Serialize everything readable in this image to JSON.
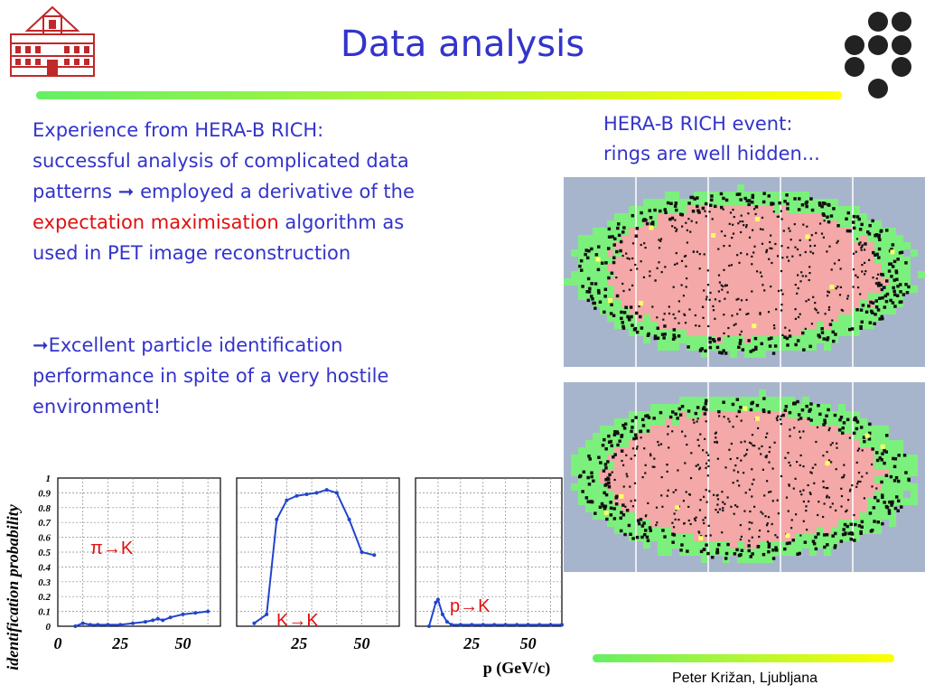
{
  "title": "Data analysis",
  "text_left": {
    "line1": "Experience from HERA-B RICH:",
    "line2": "successful analysis of complicated data",
    "line3_a": "patterns",
    "line3_b": "employed a derivative of the",
    "line4_red": "expectation maximisation",
    "line4_b": "algorithm as",
    "line5": "used in PET image reconstruction",
    "bullet2_line1": "Excellent particle identification",
    "bullet2_line2": "performance in spite of a very hostile",
    "bullet2_line3": "environment!"
  },
  "event_caption": {
    "line1": "HERA-B RICH event:",
    "line2": "rings are well hidden..."
  },
  "footer": "Peter Križan, Ljubljana",
  "colors": {
    "title": "#3333cc",
    "text": "#3333cc",
    "highlight": "#e01010",
    "curve": "#2244cc",
    "bar_start": "#66ee66",
    "bar_end": "#ffff00",
    "event_bg": "#a7b5cc",
    "event_pink": "#f4a8a8",
    "event_green": "#7cf07c"
  },
  "icons": {
    "arrow": "right-arrow-icon",
    "logo": "university-building-logo",
    "dots": "dot-cluster-icon"
  },
  "chart_data": [
    {
      "type": "line",
      "label": "πK",
      "label_parts": [
        "π",
        "K"
      ],
      "x": [
        7,
        10,
        13,
        16,
        20,
        25,
        30,
        35,
        38,
        40,
        42,
        45,
        50,
        55,
        60
      ],
      "y": [
        0.0,
        0.02,
        0.01,
        0.01,
        0.01,
        0.01,
        0.02,
        0.03,
        0.04,
        0.05,
        0.04,
        0.06,
        0.08,
        0.09,
        0.1
      ],
      "xlabel": "p (GeV/c)",
      "ylabel": "identification probability",
      "xticks": [
        0,
        25,
        50
      ],
      "yticks": [
        0,
        0.1,
        0.2,
        0.3,
        0.4,
        0.5,
        0.6,
        0.7,
        0.8,
        0.9,
        1
      ],
      "ytick_labels": [
        "0",
        "0.1",
        "0.2",
        "0.3",
        "0.4",
        "0.5",
        "0.6",
        "0.7",
        "0.8",
        "0.9",
        "1"
      ],
      "xlim": [
        0,
        65
      ],
      "ylim": [
        0,
        1
      ],
      "grid": true
    },
    {
      "type": "line",
      "label": "KK",
      "label_parts": [
        "K",
        "K"
      ],
      "x": [
        7,
        12,
        16,
        20,
        24,
        28,
        32,
        36,
        40,
        45,
        50,
        55
      ],
      "y": [
        0.02,
        0.08,
        0.72,
        0.85,
        0.88,
        0.89,
        0.9,
        0.92,
        0.9,
        0.72,
        0.5,
        0.48
      ],
      "xticks": [
        25,
        50
      ],
      "xlim": [
        0,
        65
      ],
      "ylim": [
        0,
        1
      ],
      "grid": true
    },
    {
      "type": "line",
      "label": "pK",
      "label_parts": [
        "p",
        "K"
      ],
      "x": [
        6,
        9,
        10,
        12,
        14,
        16,
        20,
        25,
        30,
        35,
        40,
        45,
        50,
        55,
        60,
        65
      ],
      "y": [
        0.0,
        0.16,
        0.18,
        0.08,
        0.03,
        0.01,
        0.01,
        0.01,
        0.01,
        0.01,
        0.01,
        0.01,
        0.01,
        0.01,
        0.01,
        0.01
      ],
      "xticks": [
        25,
        50
      ],
      "xlim": [
        0,
        65
      ],
      "ylim": [
        0,
        1
      ],
      "grid": true
    }
  ]
}
